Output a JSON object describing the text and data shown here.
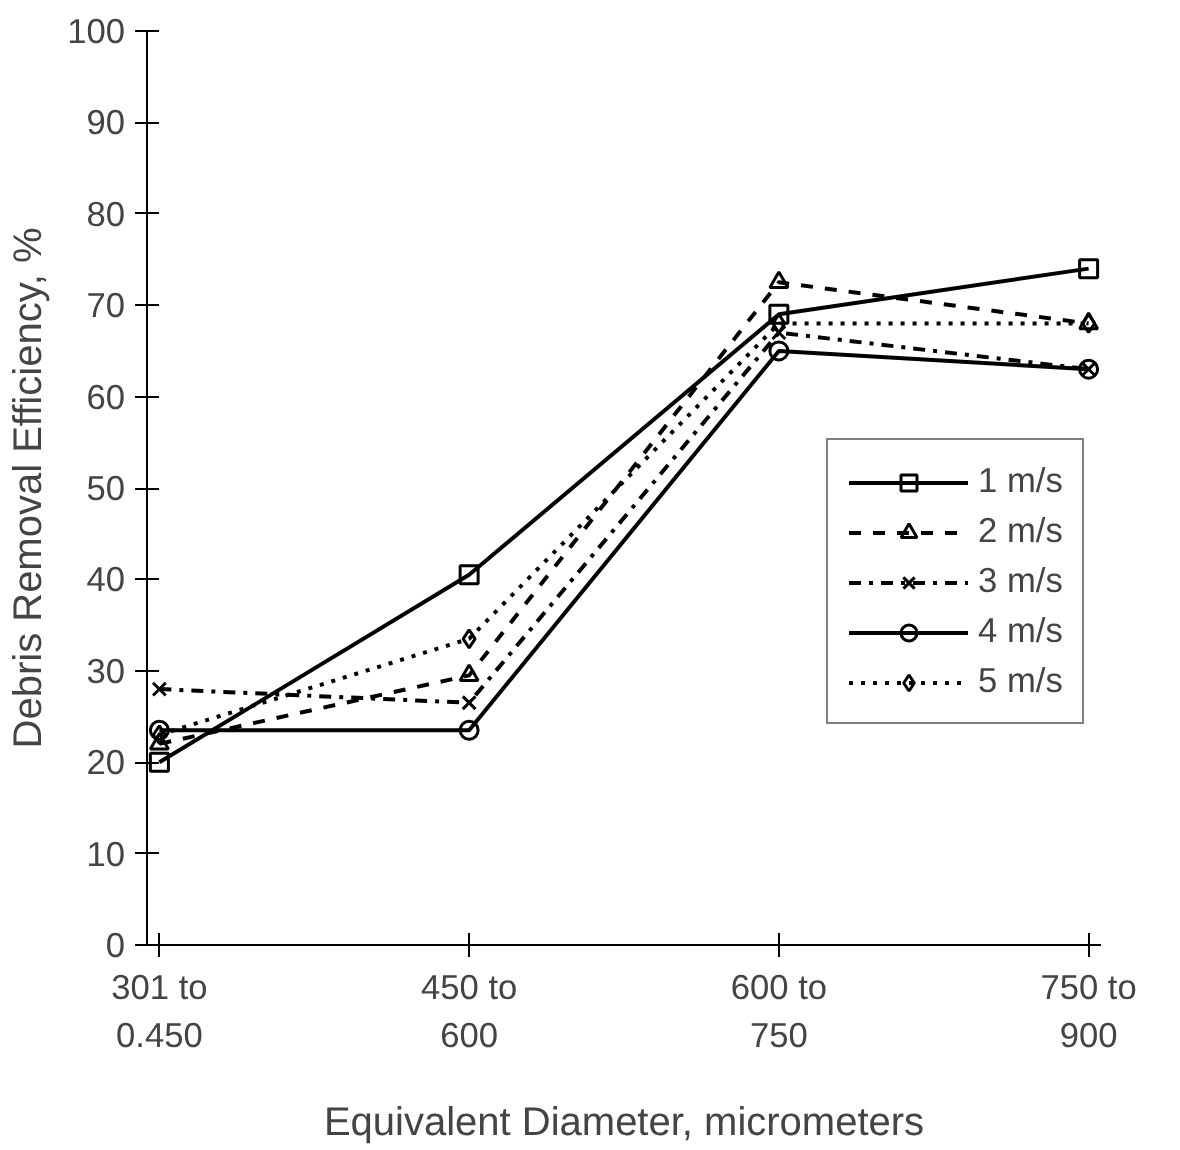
{
  "chart_data": {
    "type": "line",
    "xlabel": "Equivalent Diameter, micrometers",
    "ylabel": "Debris Removal Efficiency, %",
    "categories": [
      "301 to\n0.450",
      "450 to\n600",
      "600 to\n750",
      "750 to\n900"
    ],
    "ylim": [
      0,
      100
    ],
    "yticks": [
      0,
      10,
      20,
      30,
      40,
      50,
      60,
      70,
      80,
      90,
      100
    ],
    "grid": false,
    "legend": "right",
    "series": [
      {
        "name": "1 m/s",
        "color": "#000000",
        "values": [
          20,
          40.5,
          69,
          74
        ],
        "marker": "square",
        "line_style": "solid"
      },
      {
        "name": "2 m/s",
        "color": "#000000",
        "values": [
          22,
          29.5,
          72.5,
          68
        ],
        "marker": "triangle",
        "line_style": "dashed"
      },
      {
        "name": "3 m/s",
        "color": "#000000",
        "values": [
          28,
          26.5,
          67,
          63
        ],
        "marker": "cross",
        "line_style": "dashdot"
      },
      {
        "name": "4 m/s",
        "color": "#000000",
        "values": [
          23.5,
          23.5,
          65,
          63
        ],
        "marker": "circle",
        "line_style": "solid"
      },
      {
        "name": "5 m/s",
        "color": "#000000",
        "values": [
          23,
          33.5,
          68,
          68
        ],
        "marker": "diamond",
        "line_style": "dotted"
      }
    ]
  }
}
